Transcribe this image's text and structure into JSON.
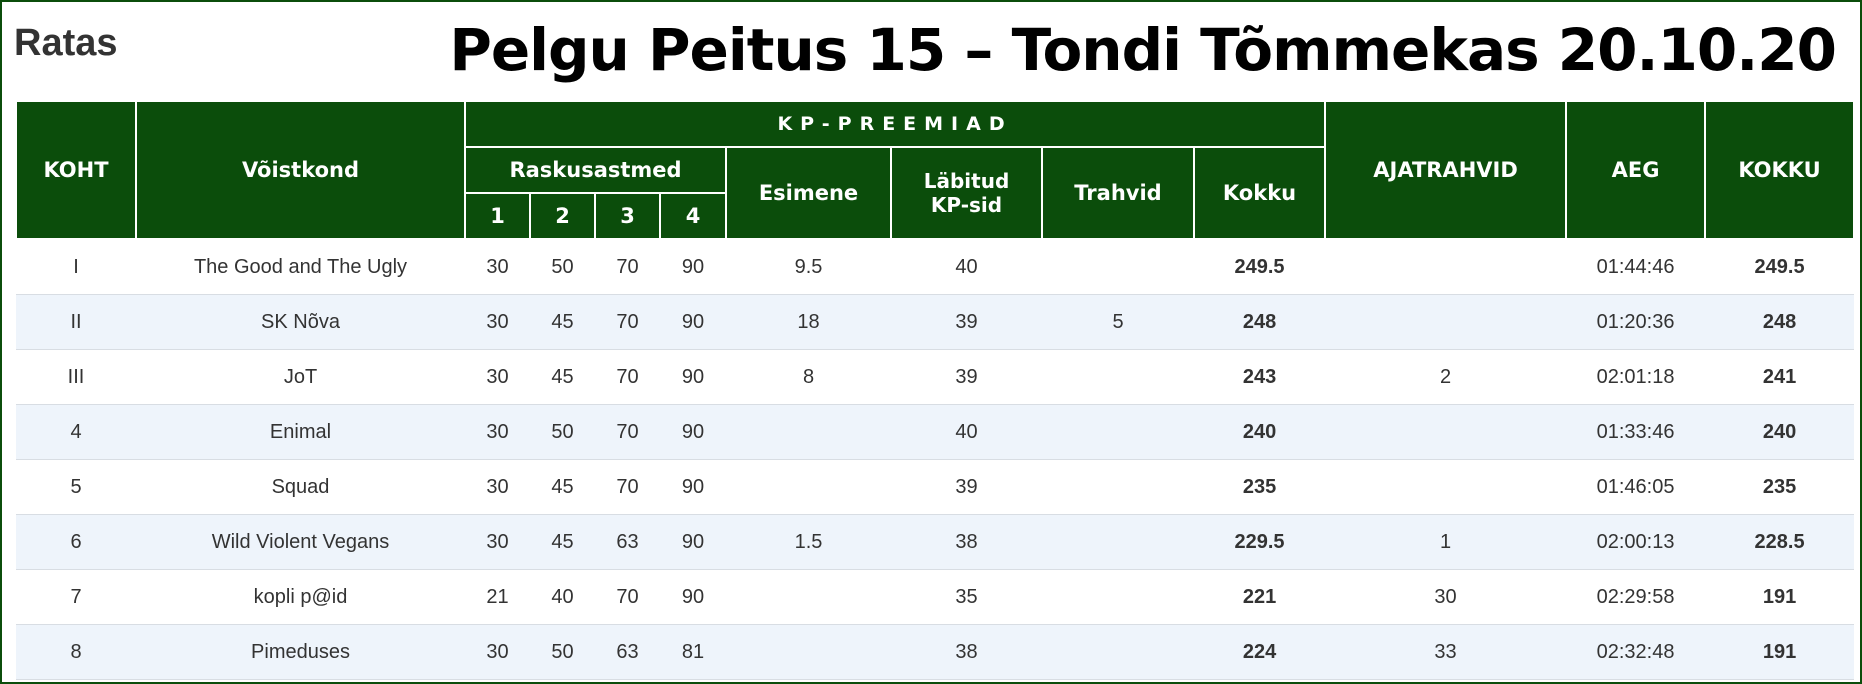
{
  "header": {
    "left_title": "Ratas",
    "main_title": "Pelgu Peitus 15 – Tondi Tõmmekas 20.10.20"
  },
  "columns": {
    "place": "KOHT",
    "team": "Võistkond",
    "kp_group": "KP-PREEMIAD",
    "difficulty_group": "Raskusastmed",
    "levels": [
      "1",
      "2",
      "3",
      "4"
    ],
    "first": "Esimene",
    "passed_line1": "Läbitud",
    "passed_line2": "KP-sid",
    "penalties": "Trahvid",
    "kp_total": "Kokku",
    "time_penalties": "AJATRAHVID",
    "time": "AEG",
    "total": "KOKKU"
  },
  "rows": [
    {
      "place": "I",
      "team": "The Good and The Ugly",
      "l1": "30",
      "l2": "50",
      "l3": "70",
      "l4": "90",
      "first": "9.5",
      "passed": "40",
      "penalty": "",
      "kp_total": "249.5",
      "time_penalty": "",
      "time": "01:44:46",
      "total": "249.5"
    },
    {
      "place": "II",
      "team": "SK Nõva",
      "l1": "30",
      "l2": "45",
      "l3": "70",
      "l4": "90",
      "first": "18",
      "passed": "39",
      "penalty": "5",
      "kp_total": "248",
      "time_penalty": "",
      "time": "01:20:36",
      "total": "248"
    },
    {
      "place": "III",
      "team": "JoT",
      "l1": "30",
      "l2": "45",
      "l3": "70",
      "l4": "90",
      "first": "8",
      "passed": "39",
      "penalty": "",
      "kp_total": "243",
      "time_penalty": "2",
      "time": "02:01:18",
      "total": "241"
    },
    {
      "place": "4",
      "team": "Enimal",
      "l1": "30",
      "l2": "50",
      "l3": "70",
      "l4": "90",
      "first": "",
      "passed": "40",
      "penalty": "",
      "kp_total": "240",
      "time_penalty": "",
      "time": "01:33:46",
      "total": "240"
    },
    {
      "place": "5",
      "team": "Squad",
      "l1": "30",
      "l2": "45",
      "l3": "70",
      "l4": "90",
      "first": "",
      "passed": "39",
      "penalty": "",
      "kp_total": "235",
      "time_penalty": "",
      "time": "01:46:05",
      "total": "235"
    },
    {
      "place": "6",
      "team": "Wild Violent Vegans",
      "l1": "30",
      "l2": "45",
      "l3": "63",
      "l4": "90",
      "first": "1.5",
      "passed": "38",
      "penalty": "",
      "kp_total": "229.5",
      "time_penalty": "1",
      "time": "02:00:13",
      "total": "228.5"
    },
    {
      "place": "7",
      "team": "kopli p@id",
      "l1": "21",
      "l2": "40",
      "l3": "70",
      "l4": "90",
      "first": "",
      "passed": "35",
      "penalty": "",
      "kp_total": "221",
      "time_penalty": "30",
      "time": "02:29:58",
      "total": "191"
    },
    {
      "place": "8",
      "team": "Pimeduses",
      "l1": "30",
      "l2": "50",
      "l3": "63",
      "l4": "81",
      "first": "",
      "passed": "38",
      "penalty": "",
      "kp_total": "224",
      "time_penalty": "33",
      "time": "02:32:48",
      "total": "191"
    }
  ]
}
